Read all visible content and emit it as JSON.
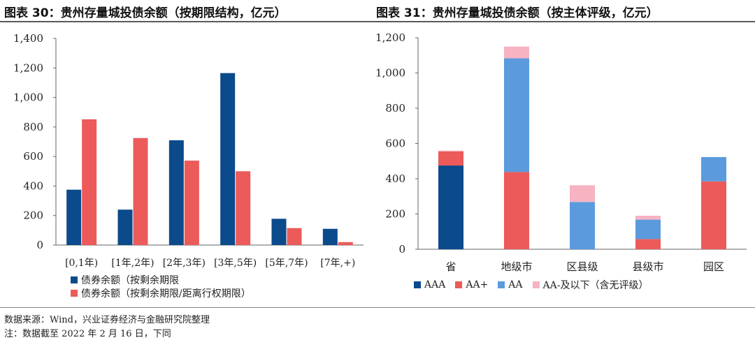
{
  "titles": {
    "left": "图表 30：贵州存量城投债余额（按期限结构，亿元）",
    "right": "图表 31：贵州存量城投债余额（按主体评级，亿元）"
  },
  "notes": {
    "source": "数据来源：Wind，兴业证券经济与金融研究院整理",
    "remark": "注：数据截至 2022 年 2 月 16 日，下同"
  },
  "colors": {
    "navy": "#0b4a8b",
    "red": "#ec5a5a",
    "lightblue": "#5b9bdd",
    "pink": "#f7b3c2"
  },
  "chart_data": [
    {
      "type": "bar",
      "categories": [
        "[0,1年)",
        "[1年,2年)",
        "[2年,3年)",
        "[3年,5年)",
        "[5年,7年)",
        "[7年,+)"
      ],
      "series": [
        {
          "name": "债券余额（按剩余期限",
          "values": [
            375,
            240,
            710,
            1165,
            178,
            110
          ]
        },
        {
          "name": "债券余额（按剩余期限/距离行权期限）",
          "values": [
            852,
            725,
            572,
            500,
            115,
            20
          ]
        }
      ],
      "ylim": [
        0,
        1400
      ],
      "yticks": [
        "0",
        "200",
        "400",
        "600",
        "800",
        "1,000",
        "1,200",
        "1,400"
      ],
      "legend_position": "bottom"
    },
    {
      "type": "bar",
      "stacked": true,
      "categories": [
        "省",
        "地级市",
        "区县级",
        "县级市",
        "园区"
      ],
      "series": [
        {
          "name": "AAA",
          "values": [
            475,
            0,
            0,
            0,
            0
          ]
        },
        {
          "name": "AA+",
          "values": [
            80,
            438,
            0,
            58,
            385
          ]
        },
        {
          "name": "AA",
          "values": [
            0,
            645,
            268,
            110,
            138
          ]
        },
        {
          "name": "AA-及以下（含无评级）",
          "values": [
            5,
            67,
            95,
            22,
            0
          ]
        }
      ],
      "ylim": [
        0,
        1200
      ],
      "yticks": [
        "0",
        "200",
        "400",
        "600",
        "800",
        "1,000",
        "1,200"
      ],
      "legend_position": "bottom"
    }
  ]
}
